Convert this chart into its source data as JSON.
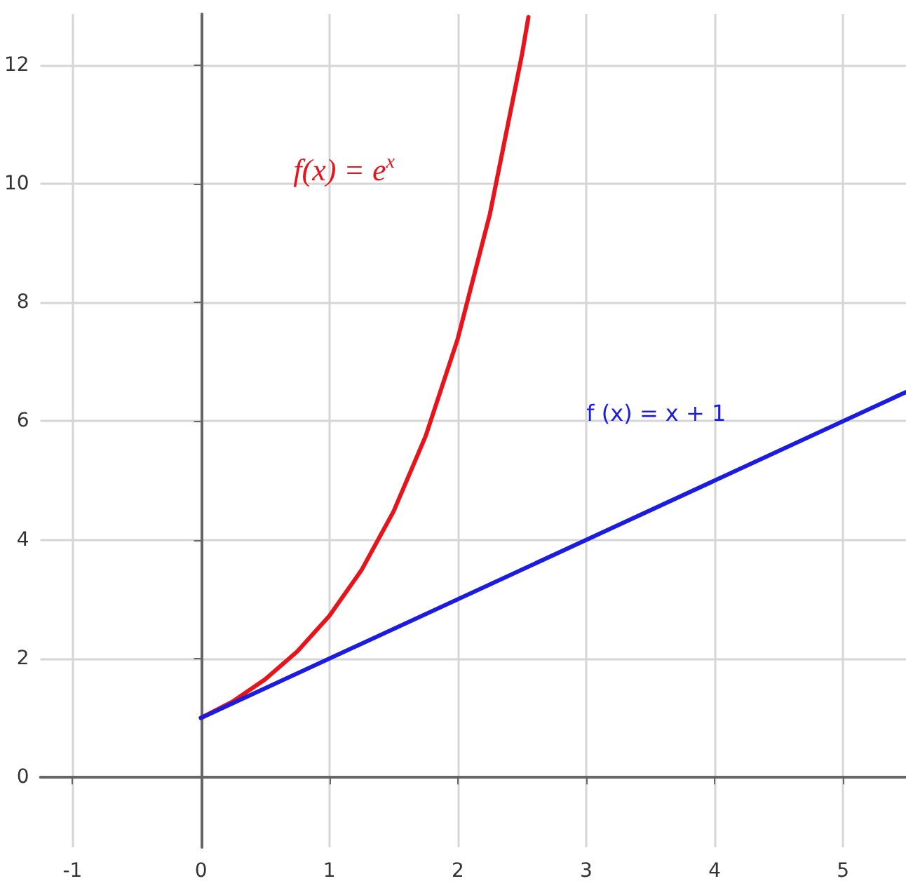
{
  "chart_data": {
    "type": "line",
    "xlim": [
      -1.25,
      5.49
    ],
    "xticks": [
      -1,
      0,
      1,
      2,
      3,
      4,
      5
    ],
    "ylim": [
      -1.18,
      12.86
    ],
    "yticks": [
      0,
      2,
      4,
      6,
      8,
      10,
      12
    ],
    "grid": true,
    "marker": "none",
    "line_style": "solid",
    "series": [
      {
        "color": "#e8141c",
        "x": [
          0,
          0.25,
          0.5,
          0.75,
          1,
          1.25,
          1.5,
          1.75,
          2,
          2.25,
          2.5,
          2.55
        ],
        "values": [
          1,
          1.28,
          1.65,
          2.12,
          2.72,
          3.49,
          4.48,
          5.75,
          7.39,
          9.49,
          12.18,
          12.81
        ]
      },
      {
        "color": "#1c1ce0",
        "x": [
          0,
          5.49
        ],
        "values": [
          1,
          6.49
        ]
      }
    ],
    "annotations": [
      "f(x) = e$^{x}$",
      "f (x) = x + 1"
    ]
  }
}
